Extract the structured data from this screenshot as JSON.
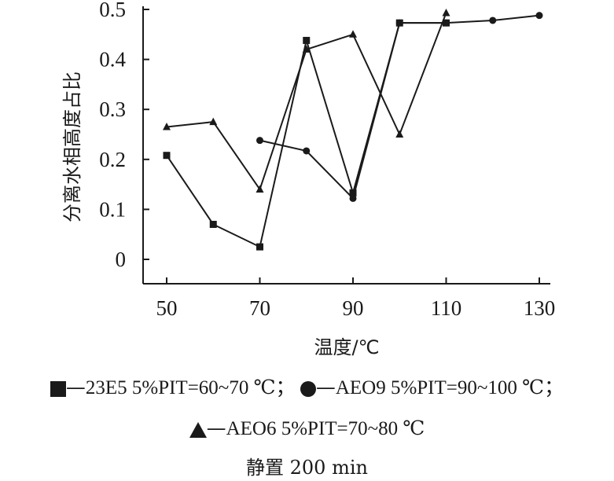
{
  "chart_data": {
    "type": "line",
    "xlabel": "温度/℃",
    "ylabel": "分离水相高度占比",
    "xticks": [
      50,
      70,
      90,
      110,
      130
    ],
    "yticks": [
      0,
      0.1,
      0.2,
      0.3,
      0.4,
      0.5
    ],
    "ytick_labels": [
      "0",
      "0.1",
      "0.2",
      "0.3",
      "0.4",
      "0.5"
    ],
    "xlim": [
      45,
      130
    ],
    "ylim": [
      -0.05,
      0.5
    ],
    "grid": false,
    "legend_position": "bottom",
    "series": [
      {
        "name": "23E5 5%PIT=60~70 ℃",
        "marker": "square",
        "points": [
          [
            50,
            0.208
          ],
          [
            60,
            0.07
          ],
          [
            70,
            0.025
          ],
          [
            80,
            0.438
          ],
          [
            90,
            0.133
          ],
          [
            100,
            0.473
          ],
          [
            110,
            0.473
          ]
        ]
      },
      {
        "name": "AEO9 5%PIT=90~100 ℃",
        "marker": "circle",
        "points": [
          [
            70,
            0.238
          ],
          [
            80,
            0.217
          ],
          [
            90,
            0.122
          ],
          [
            100,
            0.473
          ],
          [
            110,
            0.473
          ],
          [
            120,
            0.478
          ],
          [
            130,
            0.488
          ]
        ]
      },
      {
        "name": "AEO6 5%PIT=70~80 ℃",
        "marker": "triangle",
        "points": [
          [
            50,
            0.265
          ],
          [
            60,
            0.275
          ],
          [
            70,
            0.14
          ],
          [
            80,
            0.42
          ],
          [
            90,
            0.45
          ],
          [
            100,
            0.25
          ],
          [
            110,
            0.493
          ]
        ]
      }
    ]
  },
  "legend": {
    "entries": [
      {
        "symbol": "square-icon",
        "dash": "—",
        "text": "23E5 5%PIT=60~70 ℃"
      },
      {
        "symbol": "circle-icon",
        "dash": "—",
        "text": "AEO9 5%PIT=90~100 ℃"
      },
      {
        "symbol": "triangle-icon",
        "dash": "—",
        "text": "AEO6 5%PIT=70~80 ℃"
      }
    ],
    "separator": "；"
  },
  "footnote": "静置 200 min"
}
